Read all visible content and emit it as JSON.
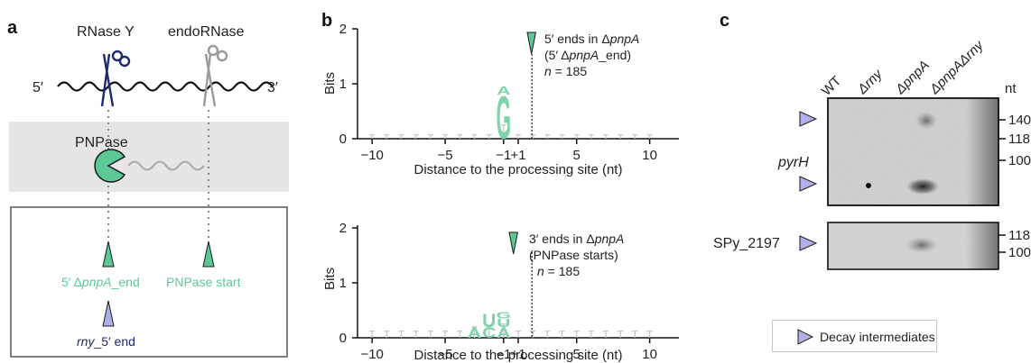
{
  "panels": {
    "a": {
      "letter": "a",
      "cutter1": "RNase Y",
      "cutter2": "endoRNase",
      "five_prime": "5′",
      "three_prime": "3′",
      "enzyme": "PNPase",
      "marker1_prefix": "5′ Δ",
      "marker1_gene": "pnpA",
      "marker1_suffix": "_end",
      "marker2": "PNPase start",
      "marker3_gene": "rny",
      "marker3_suffix": "_5′ end"
    },
    "b": {
      "letter": "b",
      "xlabel": "Distance to the processing site (nt)",
      "ylabel": "Bits",
      "top": {
        "ann1_prefix": "5′ ends in Δ",
        "ann1_gene": "pnpA",
        "ann2_prefix": "(5′ Δ",
        "ann2_gene": "pnpA",
        "ann2_suffix": "_end)",
        "ann3_n": "n",
        "ann3_val": " = 185"
      },
      "bottom": {
        "ann1_prefix": "3′ ends in Δ",
        "ann1_gene": "pnpA",
        "ann2": "(PNPase starts)",
        "ann3_n": "n",
        "ann3_val": " = 185"
      }
    },
    "c": {
      "letter": "c",
      "lanes": [
        "WT",
        "Δrny",
        "ΔpnpA",
        "ΔpnpAΔrny"
      ],
      "unit": "nt",
      "blot1_label": "pyrH",
      "blot1_markers": [
        "140",
        "118",
        "100"
      ],
      "blot2_label": "SPy_2197",
      "blot2_markers": [
        "118",
        "100"
      ],
      "legend": "Decay intermediates"
    }
  },
  "colors": {
    "green": "#5cc896",
    "light_green": "#7ed4a9",
    "navy": "#1e2a6e",
    "lavender": "#b0b0e8",
    "gray_band": "#e6e6e6"
  },
  "chart_data": [
    {
      "type": "sequence-logo",
      "title": "5′ ends in ΔpnpA (5′ ΔpnpA_end)",
      "xlabel": "Distance to the processing site (nt)",
      "ylabel": "Bits",
      "xlim": [
        -11,
        11
      ],
      "ylim": [
        0,
        2
      ],
      "xticks": [
        "-10",
        "-5",
        "-1",
        "+1",
        "5",
        "10"
      ],
      "yticks": [
        "0",
        "1",
        "2"
      ],
      "n": 185,
      "positions": [
        -10,
        -9,
        -8,
        -7,
        -6,
        -5,
        -4,
        -3,
        -2,
        -1,
        1,
        2,
        3,
        4,
        5,
        6,
        7,
        8,
        9,
        10
      ],
      "letters": [
        {
          "pos": -1,
          "letter": "G",
          "bits": 0.8
        },
        {
          "pos": -1,
          "letter": "A",
          "bits": 0.15
        }
      ],
      "error_bars": [
        0.07,
        0.07,
        0.07,
        0.07,
        0.07,
        0.07,
        0.07,
        0.07,
        0.07,
        0.25,
        0.07,
        0.07,
        0.07,
        0.07,
        0.07,
        0.07,
        0.07,
        0.07,
        0.07,
        0.07
      ]
    },
    {
      "type": "sequence-logo",
      "title": "3′ ends in ΔpnpA (PNPase starts)",
      "xlabel": "Distance to the processing site (nt)",
      "ylabel": "Bits",
      "xlim": [
        -11,
        11
      ],
      "ylim": [
        0,
        2
      ],
      "xticks": [
        "-10",
        "-5",
        "-1",
        "+1",
        "5",
        "10"
      ],
      "yticks": [
        "0",
        "1",
        "2"
      ],
      "n": 185,
      "positions": [
        -10,
        -9,
        -8,
        -7,
        -6,
        -5,
        -4,
        -3,
        -2,
        -1,
        1,
        2,
        3,
        4,
        5,
        6,
        7,
        8,
        9,
        10
      ],
      "letters": [
        {
          "pos": -3,
          "letter": "A",
          "bits": 0.2
        },
        {
          "pos": -2,
          "letter": "C",
          "bits": 0.2
        },
        {
          "pos": -2,
          "letter": "U",
          "bits": 0.25
        },
        {
          "pos": -1,
          "letter": "A",
          "bits": 0.2
        },
        {
          "pos": -1,
          "letter": "U",
          "bits": 0.15
        },
        {
          "pos": -1,
          "letter": "G",
          "bits": 0.12
        }
      ],
      "error_bars": [
        0.12,
        0.12,
        0.12,
        0.12,
        0.12,
        0.12,
        0.12,
        0.2,
        0.2,
        0.25,
        0.12,
        0.12,
        0.12,
        0.12,
        0.12,
        0.12,
        0.12,
        0.12,
        0.12,
        0.12
      ]
    }
  ]
}
